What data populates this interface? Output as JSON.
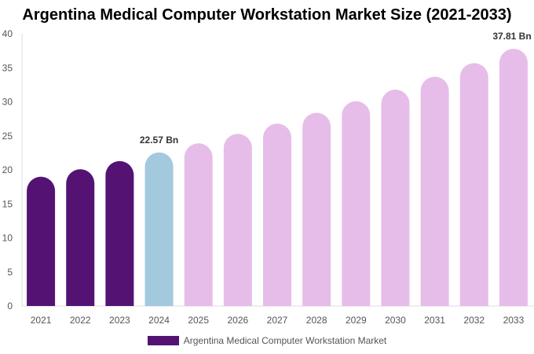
{
  "chart_data": {
    "type": "bar",
    "title": "Argentina Medical Computer Workstation Market Size (2021-2033)",
    "categories": [
      "2021",
      "2022",
      "2023",
      "2024",
      "2025",
      "2026",
      "2027",
      "2028",
      "2029",
      "2030",
      "2031",
      "2032",
      "2033"
    ],
    "series": [
      {
        "name": "Argentina Medical Computer Workstation Market",
        "values": [
          19.0,
          20.1,
          21.3,
          22.57,
          23.9,
          25.3,
          26.8,
          28.4,
          30.1,
          31.8,
          33.7,
          35.7,
          37.81
        ]
      }
    ],
    "ylim": [
      0,
      40
    ],
    "yticks": [
      0,
      5,
      10,
      15,
      20,
      25,
      30,
      35,
      40
    ],
    "grid": false,
    "legend": "bottom",
    "data_labels": [
      {
        "category": "2024",
        "text": "22.57 Bn"
      },
      {
        "category": "2033",
        "text": "37.81 Bn"
      }
    ],
    "colors": {
      "historical": "#541373",
      "base_year": "#a3c9de",
      "forecast": "#e6bde9",
      "legend": "#541373"
    }
  }
}
